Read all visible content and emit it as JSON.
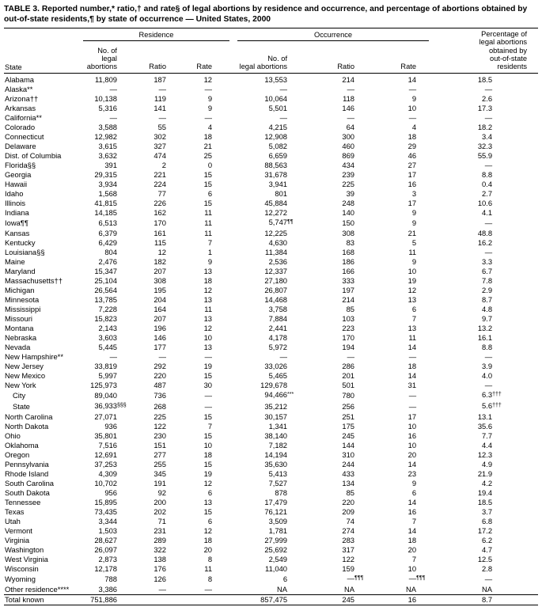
{
  "title": "TABLE 3. Reported number,* ratio,† and rate§ of legal abortions by residence and occurrence, and percentage of abortions obtained by out-of-state residents,¶ by state of occurrence — United States, 2000",
  "table": {
    "state_header": "State",
    "group_headers": {
      "residence": "Residence",
      "occurrence": "Occurrence"
    },
    "sub_headers": {
      "no": "No. of\nlegal abortions",
      "ratio": "Ratio",
      "rate": "Rate"
    },
    "pct_header": "Percentage of\nlegal abortions\nobtained by\nout-of-state\nresidents",
    "rows": [
      {
        "state": "Alabama",
        "cells": [
          "11,809",
          "187",
          "12",
          "13,553",
          "214",
          "14",
          "18.5"
        ]
      },
      {
        "state": "Alaska**",
        "cells": [
          "—",
          "—",
          "—",
          "—",
          "—",
          "—",
          "—"
        ]
      },
      {
        "state": "Arizona††",
        "cells": [
          "10,138",
          "119",
          "9",
          "10,064",
          "118",
          "9",
          "2.6"
        ]
      },
      {
        "state": "Arkansas",
        "cells": [
          "5,316",
          "141",
          "9",
          "5,501",
          "146",
          "10",
          "17.3"
        ]
      },
      {
        "state": "California**",
        "cells": [
          "—",
          "—",
          "—",
          "—",
          "—",
          "—",
          "—"
        ]
      },
      {
        "state": "Colorado",
        "cells": [
          "3,588",
          "55",
          "4",
          "4,215",
          "64",
          "4",
          "18.2"
        ]
      },
      {
        "state": "Connecticut",
        "cells": [
          "12,982",
          "302",
          "18",
          "12,908",
          "300",
          "18",
          "3.4"
        ]
      },
      {
        "state": "Delaware",
        "cells": [
          "3,615",
          "327",
          "21",
          "5,082",
          "460",
          "29",
          "32.3"
        ]
      },
      {
        "state": "Dist. of Columbia",
        "cells": [
          "3,632",
          "474",
          "25",
          "6,659",
          "869",
          "46",
          "55.9"
        ]
      },
      {
        "state": "Florida§§",
        "cells": [
          "391",
          "2",
          "0",
          "88,563",
          "434",
          "27",
          "—"
        ]
      },
      {
        "state": "Georgia",
        "cells": [
          "29,315",
          "221",
          "15",
          "31,678",
          "239",
          "17",
          "8.8"
        ]
      },
      {
        "state": "Hawaii",
        "cells": [
          "3,934",
          "224",
          "15",
          "3,941",
          "225",
          "16",
          "0.4"
        ]
      },
      {
        "state": "Idaho",
        "cells": [
          "1,568",
          "77",
          "6",
          "801",
          "39",
          "3",
          "2.7"
        ]
      },
      {
        "state": "Illinois",
        "cells": [
          "41,815",
          "226",
          "15",
          "45,884",
          "248",
          "17",
          "10.6"
        ]
      },
      {
        "state": "Indiana",
        "cells": [
          "14,185",
          "162",
          "11",
          "12,272",
          "140",
          "9",
          "4.1"
        ]
      },
      {
        "state": "Iowa¶¶",
        "cells": [
          "6,513",
          "170",
          "11",
          "5,747¶¶",
          "150",
          "9",
          "—"
        ]
      },
      {
        "state": "Kansas",
        "cells": [
          "6,379",
          "161",
          "11",
          "12,225",
          "308",
          "21",
          "48.8"
        ]
      },
      {
        "state": "Kentucky",
        "cells": [
          "6,429",
          "115",
          "7",
          "4,630",
          "83",
          "5",
          "16.2"
        ]
      },
      {
        "state": "Louisiana§§",
        "cells": [
          "804",
          "12",
          "1",
          "11,384",
          "168",
          "11",
          "—"
        ]
      },
      {
        "state": "Maine",
        "cells": [
          "2,476",
          "182",
          "9",
          "2,536",
          "186",
          "9",
          "3.3"
        ]
      },
      {
        "state": "Maryland",
        "cells": [
          "15,347",
          "207",
          "13",
          "12,337",
          "166",
          "10",
          "6.7"
        ]
      },
      {
        "state": "Massachusetts††",
        "cells": [
          "25,104",
          "308",
          "18",
          "27,180",
          "333",
          "19",
          "7.8"
        ]
      },
      {
        "state": "Michigan",
        "cells": [
          "26,564",
          "195",
          "12",
          "26,807",
          "197",
          "12",
          "2.9"
        ]
      },
      {
        "state": "Minnesota",
        "cells": [
          "13,785",
          "204",
          "13",
          "14,468",
          "214",
          "13",
          "8.7"
        ]
      },
      {
        "state": "Mississippi",
        "cells": [
          "7,228",
          "164",
          "11",
          "3,758",
          "85",
          "6",
          "4.8"
        ]
      },
      {
        "state": "Missouri",
        "cells": [
          "15,823",
          "207",
          "13",
          "7,884",
          "103",
          "7",
          "9.7"
        ]
      },
      {
        "state": "Montana",
        "cells": [
          "2,143",
          "196",
          "12",
          "2,441",
          "223",
          "13",
          "13.2"
        ]
      },
      {
        "state": "Nebraska",
        "cells": [
          "3,603",
          "146",
          "10",
          "4,178",
          "170",
          "11",
          "16.1"
        ]
      },
      {
        "state": "Nevada",
        "cells": [
          "5,445",
          "177",
          "13",
          "5,972",
          "194",
          "14",
          "8.8"
        ]
      },
      {
        "state": "New Hampshire**",
        "cells": [
          "—",
          "—",
          "—",
          "—",
          "—",
          "—",
          "—"
        ]
      },
      {
        "state": "New Jersey",
        "cells": [
          "33,819",
          "292",
          "19",
          "33,026",
          "286",
          "18",
          "3.9"
        ]
      },
      {
        "state": "New Mexico",
        "cells": [
          "5,997",
          "220",
          "15",
          "5,465",
          "201",
          "14",
          "4.0"
        ]
      },
      {
        "state": "New York",
        "cells": [
          "125,973",
          "487",
          "30",
          "129,678",
          "501",
          "31",
          "—"
        ]
      },
      {
        "state": "City",
        "indent": true,
        "cells": [
          "89,040",
          "736",
          "—",
          "94,466***",
          "780",
          "—",
          "6.3†††"
        ]
      },
      {
        "state": "State",
        "indent": true,
        "cells": [
          "36,933§§§",
          "268",
          "—",
          "35,212",
          "256",
          "—",
          "5.6†††"
        ]
      },
      {
        "state": "North Carolina",
        "cells": [
          "27,071",
          "225",
          "15",
          "30,157",
          "251",
          "17",
          "13.1"
        ]
      },
      {
        "state": "North Dakota",
        "cells": [
          "936",
          "122",
          "7",
          "1,341",
          "175",
          "10",
          "35.6"
        ]
      },
      {
        "state": "Ohio",
        "cells": [
          "35,801",
          "230",
          "15",
          "38,140",
          "245",
          "16",
          "7.7"
        ]
      },
      {
        "state": "Oklahoma",
        "cells": [
          "7,516",
          "151",
          "10",
          "7,182",
          "144",
          "10",
          "4.4"
        ]
      },
      {
        "state": "Oregon",
        "cells": [
          "12,691",
          "277",
          "18",
          "14,194",
          "310",
          "20",
          "12.3"
        ]
      },
      {
        "state": "Pennsylvania",
        "cells": [
          "37,253",
          "255",
          "15",
          "35,630",
          "244",
          "14",
          "4.9"
        ]
      },
      {
        "state": "Rhode Island",
        "cells": [
          "4,309",
          "345",
          "19",
          "5,413",
          "433",
          "23",
          "21.9"
        ]
      },
      {
        "state": "South Carolina",
        "cells": [
          "10,702",
          "191",
          "12",
          "7,527",
          "134",
          "9",
          "4.2"
        ]
      },
      {
        "state": "South Dakota",
        "cells": [
          "956",
          "92",
          "6",
          "878",
          "85",
          "6",
          "19.4"
        ]
      },
      {
        "state": "Tennessee",
        "cells": [
          "15,895",
          "200",
          "13",
          "17,479",
          "220",
          "14",
          "18.5"
        ]
      },
      {
        "state": "Texas",
        "cells": [
          "73,435",
          "202",
          "15",
          "76,121",
          "209",
          "16",
          "3.7"
        ]
      },
      {
        "state": "Utah",
        "cells": [
          "3,344",
          "71",
          "6",
          "3,509",
          "74",
          "7",
          "6.8"
        ]
      },
      {
        "state": "Vermont",
        "cells": [
          "1,503",
          "231",
          "12",
          "1,781",
          "274",
          "14",
          "17.2"
        ]
      },
      {
        "state": "Virginia",
        "cells": [
          "28,627",
          "289",
          "18",
          "27,999",
          "283",
          "18",
          "6.2"
        ]
      },
      {
        "state": "Washington",
        "cells": [
          "26,097",
          "322",
          "20",
          "25,692",
          "317",
          "20",
          "4.7"
        ]
      },
      {
        "state": "West Virginia",
        "cells": [
          "2,873",
          "138",
          "8",
          "2,549",
          "122",
          "7",
          "12.5"
        ]
      },
      {
        "state": "Wisconsin",
        "cells": [
          "12,178",
          "176",
          "11",
          "11,040",
          "159",
          "10",
          "2.8"
        ]
      },
      {
        "state": "Wyoming",
        "cells": [
          "788",
          "126",
          "8",
          "6",
          "—¶¶¶",
          "—¶¶¶",
          "—"
        ]
      },
      {
        "state": "Other residence****",
        "cells": [
          "3,386",
          "—",
          "—",
          "NA",
          "NA",
          "NA",
          "NA"
        ]
      },
      {
        "state": "Total known",
        "total": true,
        "cells": [
          "751,886",
          "",
          "",
          "857,475",
          "245",
          "16",
          "8.7"
        ]
      }
    ]
  }
}
